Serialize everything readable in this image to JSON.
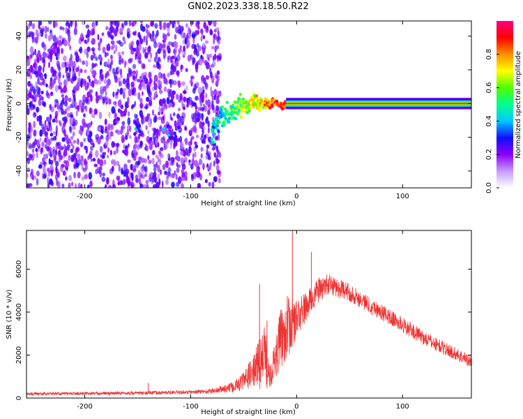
{
  "figure": {
    "title": "GN02.2023.338.18.50.R22"
  },
  "chart_data": [
    {
      "type": "heatmap",
      "xlabel": "Height of straight line (km)",
      "ylabel": "Frequency (Hz)",
      "xlim": [
        -255,
        165
      ],
      "ylim": [
        -50,
        49
      ],
      "xticks": [
        -200,
        -100,
        0,
        100
      ],
      "yticks": [
        -40,
        -20,
        0,
        20,
        40
      ],
      "grid": false,
      "colorbar": {
        "label": "Normalized spectral amplitude",
        "range": [
          0,
          1
        ],
        "ticks": [
          "0.0",
          "0.2",
          "0.4",
          "0.6",
          "0.8"
        ],
        "colors": [
          "#ffffff",
          "#c79bff",
          "#8b00ff",
          "#1010ff",
          "#00c8ff",
          "#00ff90",
          "#50ff00",
          "#ffff00",
          "#ff9000",
          "#ff0000",
          "#ff0080"
        ]
      },
      "features": {
        "noise_region_x": [
          -255,
          -80
        ],
        "tone_start_x": -80,
        "tone_steady_from_x": -10,
        "tone_steady_freq": 0,
        "tone_track": [
          [
            -80,
            -18
          ],
          [
            -70,
            -8
          ],
          [
            -60,
            -4
          ],
          [
            -50,
            0
          ],
          [
            -40,
            1
          ],
          [
            -20,
            0
          ],
          [
            -10,
            -1
          ],
          [
            0,
            0
          ],
          [
            165,
            0
          ]
        ],
        "isolated_blobs": [
          [
            -150,
            -15
          ],
          [
            -118,
            -16
          ]
        ]
      }
    },
    {
      "type": "line",
      "xlabel": "Height of straight line (km)",
      "ylabel": "SNR (10 * v/v)",
      "xlim": [
        -255,
        165
      ],
      "ylim": [
        0,
        7800
      ],
      "xticks": [
        -200,
        -100,
        0,
        100
      ],
      "yticks": [
        0,
        2000,
        4000,
        6000
      ],
      "color": "#ee3333",
      "grid": false,
      "envelope": {
        "x": [
          -255,
          -200,
          -150,
          -100,
          -80,
          -60,
          -50,
          -40,
          -35,
          -30,
          -25,
          -20,
          -15,
          -10,
          -5,
          0,
          10,
          20,
          30,
          40,
          50,
          60,
          80,
          100,
          120,
          140,
          165
        ],
        "mean": [
          200,
          210,
          230,
          270,
          320,
          500,
          800,
          1300,
          1700,
          1900,
          1200,
          1800,
          2800,
          3200,
          3500,
          3700,
          4300,
          5000,
          5300,
          5100,
          4900,
          4600,
          4000,
          3400,
          2800,
          2300,
          1700
        ],
        "spread": [
          70,
          70,
          80,
          90,
          120,
          250,
          450,
          750,
          1300,
          1500,
          700,
          1000,
          1400,
          1500,
          1400,
          900,
          700,
          600,
          500,
          450,
          420,
          400,
          380,
          360,
          340,
          320,
          300
        ]
      },
      "spikes": [
        [
          -140,
          700
        ],
        [
          -35,
          5300
        ],
        [
          -28,
          3600
        ],
        [
          -4,
          7800
        ],
        [
          14,
          6800
        ]
      ]
    }
  ]
}
